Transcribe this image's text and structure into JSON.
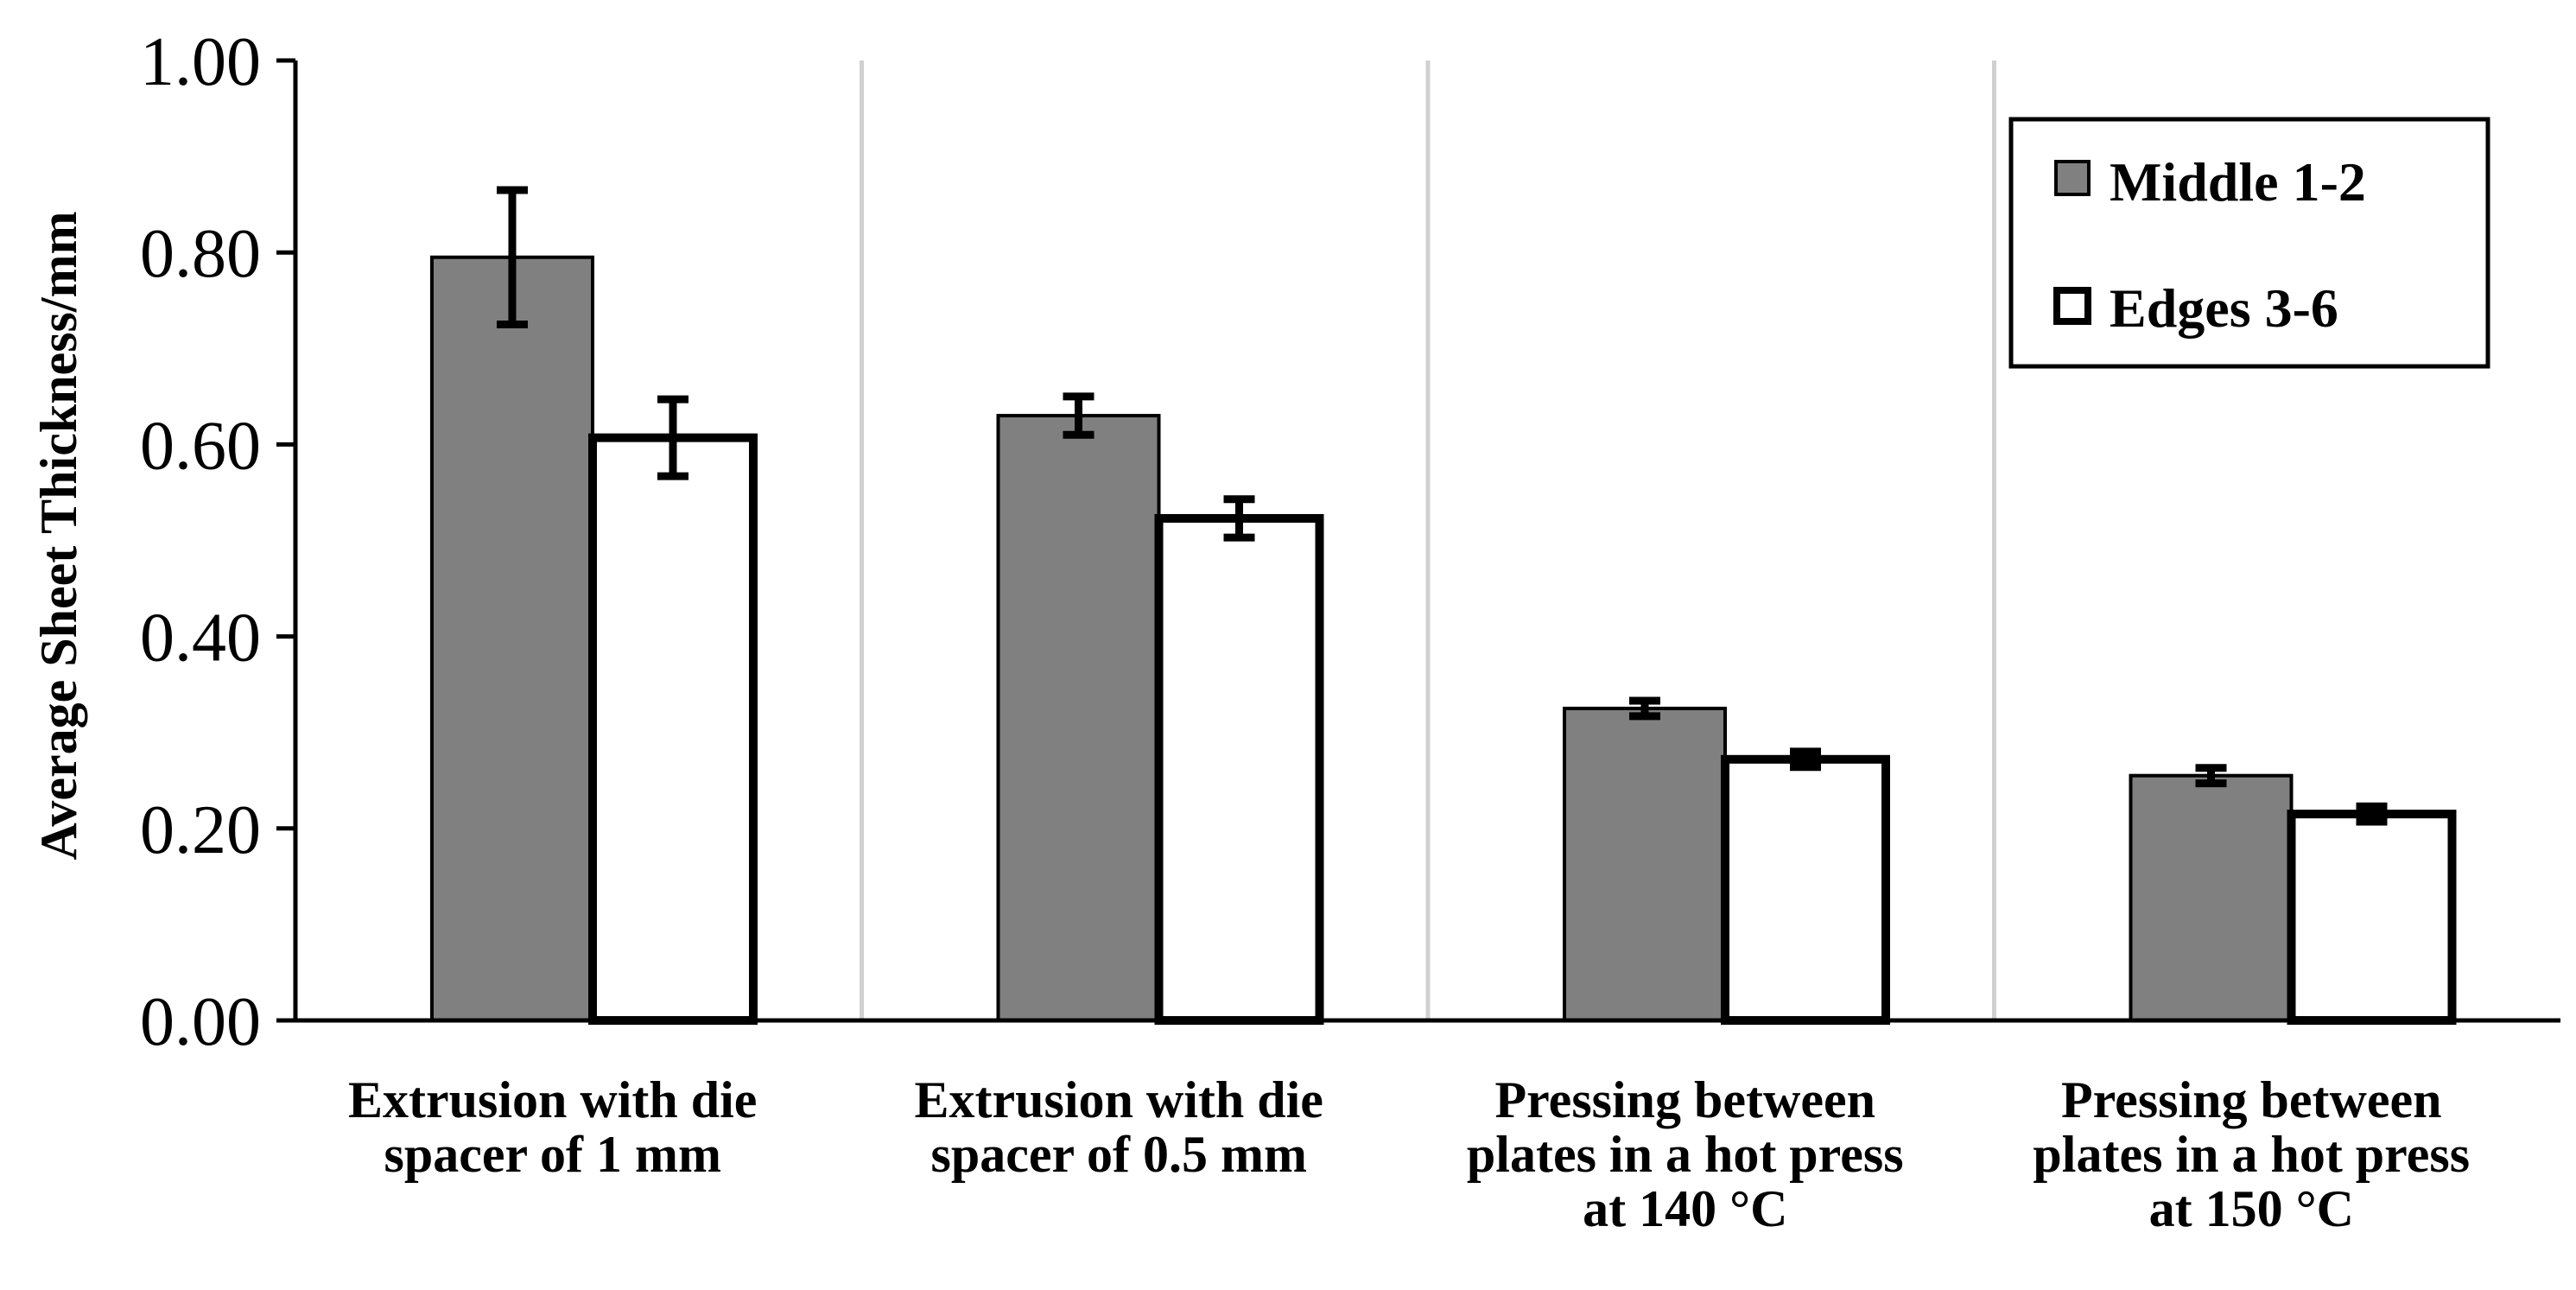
{
  "chart_data": {
    "type": "bar",
    "title": "",
    "xlabel": "",
    "ylabel": "Average Sheet Thickness/mm",
    "ylim": [
      0,
      1.0
    ],
    "yticks": [
      "0.00",
      "0.20",
      "0.40",
      "0.60",
      "0.80",
      "1.00"
    ],
    "categories": [
      [
        "Extrusion with die",
        "spacer of 1 mm"
      ],
      [
        "Extrusion with die",
        "spacer of 0.5 mm"
      ],
      [
        "Pressing between",
        "plates in a hot press",
        "at 140 °C"
      ],
      [
        "Pressing between",
        "plates in a hot press",
        "at 150 °C"
      ]
    ],
    "series": [
      {
        "name": "Middle 1-2",
        "values": [
          0.795,
          0.63,
          0.325,
          0.255
        ],
        "errors": [
          0.07,
          0.02,
          0.008,
          0.008
        ],
        "fill": "#808080",
        "stroke": "#000000"
      },
      {
        "name": "Edges 3-6",
        "values": [
          0.607,
          0.523,
          0.272,
          0.215
        ],
        "errors": [
          0.04,
          0.02,
          0.008,
          0.008
        ],
        "fill": "#ffffff",
        "stroke": "#000000"
      }
    ],
    "legend_position": "top-right",
    "grid": "vertical category separators"
  }
}
